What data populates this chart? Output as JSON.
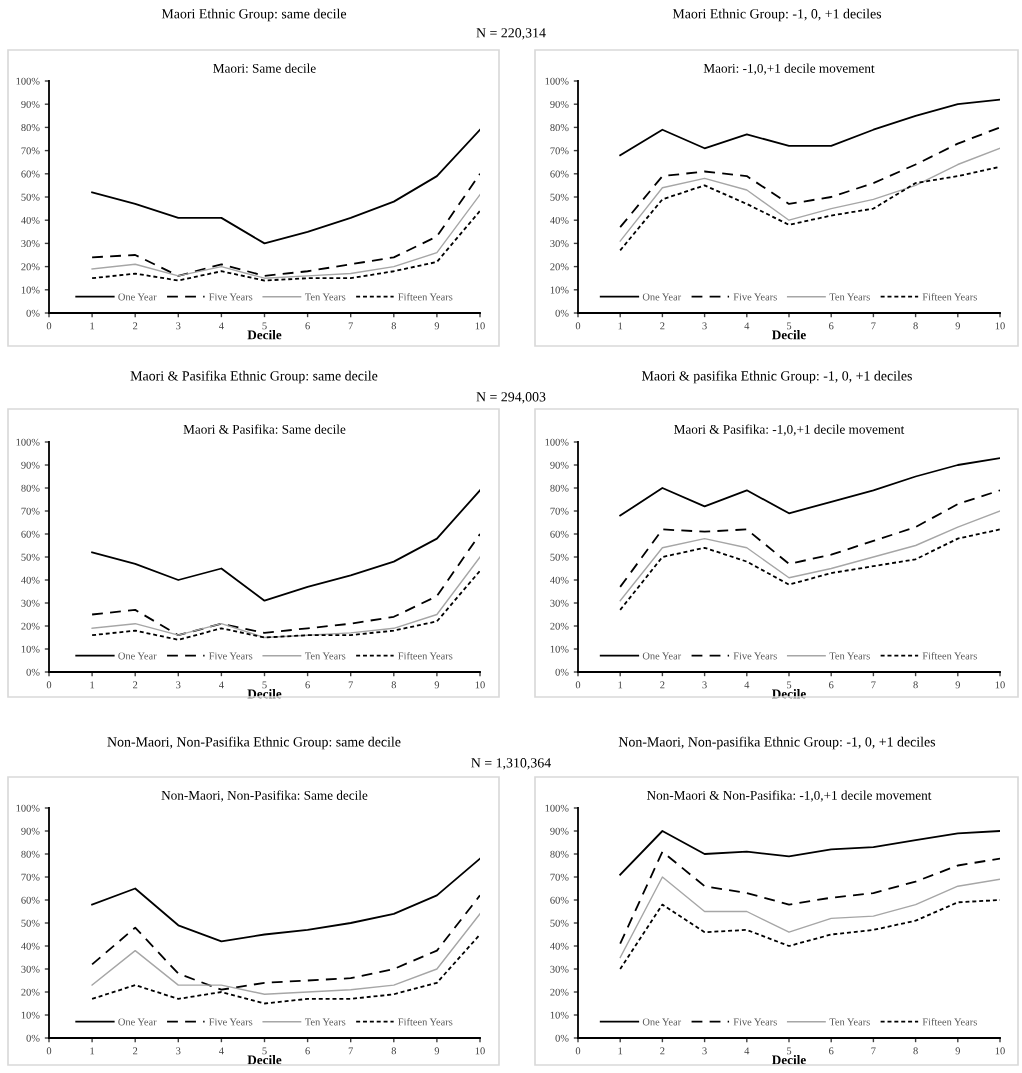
{
  "chart_data": [
    {
      "type": "line",
      "title": "Maori: Same decile",
      "xlabel": "Decile",
      "annotations": [
        "Maori Ethnic Group: same decile",
        "N = 220,314"
      ],
      "x": [
        1,
        2,
        3,
        4,
        5,
        6,
        7,
        8,
        9,
        10
      ],
      "xlim": [
        0,
        10
      ],
      "xticks": [
        0,
        1,
        2,
        3,
        4,
        5,
        6,
        7,
        8,
        9,
        10
      ],
      "ylim": [
        0,
        100
      ],
      "yticks": [
        {
          "value": 0,
          "label": "0%"
        },
        {
          "value": 10,
          "label": "10%"
        },
        {
          "value": 20,
          "label": "20%"
        },
        {
          "value": 30,
          "label": "30%"
        },
        {
          "value": 40,
          "label": "40%"
        },
        {
          "value": 50,
          "label": "50%"
        },
        {
          "value": 60,
          "label": "60%"
        },
        {
          "value": 70,
          "label": "70%"
        },
        {
          "value": 80,
          "label": "80%"
        },
        {
          "value": 90,
          "label": "90%"
        },
        {
          "value": 100,
          "label": "100%"
        }
      ],
      "legend": "bottom",
      "grid": false,
      "series": [
        {
          "name": "One Year",
          "color": "#000000",
          "line_style": "solid",
          "values": [
            52,
            47,
            41,
            41,
            30,
            35,
            41,
            48,
            59,
            79
          ]
        },
        {
          "name": "Five Years",
          "color": "#000000",
          "line_style": "dashed",
          "values": [
            24,
            25,
            16,
            21,
            16,
            18,
            21,
            24,
            33,
            60
          ]
        },
        {
          "name": "Ten Years",
          "color": "#a6a6a6",
          "line_style": "solid",
          "values": [
            19,
            21,
            16,
            20,
            15,
            16,
            17,
            20,
            26,
            51
          ]
        },
        {
          "name": "Fifteen Years",
          "color": "#000000",
          "line_style": "dotted",
          "values": [
            15,
            17,
            14,
            18,
            14,
            15,
            15,
            18,
            22,
            44
          ]
        }
      ]
    },
    {
      "type": "line",
      "title": "Maori: -1,0,+1 decile movement",
      "xlabel": "Decile",
      "annotations": [
        "Maori Ethnic Group: -1, 0, +1 deciles"
      ],
      "x": [
        1,
        2,
        3,
        4,
        5,
        6,
        7,
        8,
        9,
        10
      ],
      "xlim": [
        0,
        10
      ],
      "xticks": [
        0,
        1,
        2,
        3,
        4,
        5,
        6,
        7,
        8,
        9,
        10
      ],
      "ylim": [
        0,
        100
      ],
      "yticks": [
        {
          "value": 0,
          "label": "0%"
        },
        {
          "value": 10,
          "label": "10%"
        },
        {
          "value": 20,
          "label": "20%"
        },
        {
          "value": 30,
          "label": "30%"
        },
        {
          "value": 40,
          "label": "40%"
        },
        {
          "value": 50,
          "label": "50%"
        },
        {
          "value": 60,
          "label": "60%"
        },
        {
          "value": 70,
          "label": "70%"
        },
        {
          "value": 80,
          "label": "80%"
        },
        {
          "value": 90,
          "label": "90%"
        },
        {
          "value": 100,
          "label": "100%"
        }
      ],
      "legend": "bottom",
      "grid": false,
      "series": [
        {
          "name": "One Year",
          "color": "#000000",
          "line_style": "solid",
          "values": [
            68,
            79,
            71,
            77,
            72,
            72,
            79,
            85,
            90,
            92
          ]
        },
        {
          "name": "Five Years",
          "color": "#000000",
          "line_style": "dashed",
          "values": [
            37,
            59,
            61,
            59,
            47,
            50,
            56,
            64,
            73,
            80
          ]
        },
        {
          "name": "Ten Years",
          "color": "#a6a6a6",
          "line_style": "solid",
          "values": [
            31,
            54,
            58,
            53,
            40,
            45,
            49,
            55,
            64,
            71
          ]
        },
        {
          "name": "Fifteen Years",
          "color": "#000000",
          "line_style": "dotted",
          "values": [
            27,
            49,
            55,
            47,
            38,
            42,
            45,
            56,
            59,
            63
          ]
        }
      ]
    },
    {
      "type": "line",
      "title": "Maori & Pasifika: Same decile",
      "xlabel": "Decile",
      "annotations": [
        "Maori & Pasifika Ethnic Group: same decile",
        "N = 294,003"
      ],
      "x": [
        1,
        2,
        3,
        4,
        5,
        6,
        7,
        8,
        9,
        10
      ],
      "xlim": [
        0,
        10
      ],
      "xticks": [
        0,
        1,
        2,
        3,
        4,
        5,
        6,
        7,
        8,
        9,
        10
      ],
      "ylim": [
        0,
        100
      ],
      "yticks": [
        {
          "value": 0,
          "label": "0%"
        },
        {
          "value": 10,
          "label": "10%"
        },
        {
          "value": 20,
          "label": "20%"
        },
        {
          "value": 30,
          "label": "30%"
        },
        {
          "value": 40,
          "label": "40%"
        },
        {
          "value": 50,
          "label": "50%"
        },
        {
          "value": 60,
          "label": "60%"
        },
        {
          "value": 70,
          "label": "70%"
        },
        {
          "value": 80,
          "label": "80%"
        },
        {
          "value": 90,
          "label": "90%"
        },
        {
          "value": 100,
          "label": "100%"
        }
      ],
      "legend": "bottom",
      "grid": false,
      "series": [
        {
          "name": "One Year",
          "color": "#000000",
          "line_style": "solid",
          "values": [
            52,
            47,
            40,
            45,
            31,
            37,
            42,
            48,
            58,
            79
          ]
        },
        {
          "name": "Five Years",
          "color": "#000000",
          "line_style": "dashed",
          "values": [
            25,
            27,
            16,
            21,
            17,
            19,
            21,
            24,
            33,
            60
          ]
        },
        {
          "name": "Ten Years",
          "color": "#a6a6a6",
          "line_style": "solid",
          "values": [
            19,
            21,
            16,
            21,
            15,
            16,
            17,
            19,
            25,
            50
          ]
        },
        {
          "name": "Fifteen Years",
          "color": "#000000",
          "line_style": "dotted",
          "values": [
            16,
            18,
            14,
            19,
            15,
            16,
            16,
            18,
            22,
            44
          ]
        }
      ]
    },
    {
      "type": "line",
      "title": "Maori & Pasifika: -1,0,+1 decile movement",
      "xlabel": "Decile",
      "annotations": [
        "Maori & pasifika Ethnic Group: -1, 0, +1 deciles"
      ],
      "x": [
        1,
        2,
        3,
        4,
        5,
        6,
        7,
        8,
        9,
        10
      ],
      "xlim": [
        0,
        10
      ],
      "xticks": [
        0,
        1,
        2,
        3,
        4,
        5,
        6,
        7,
        8,
        9,
        10
      ],
      "ylim": [
        0,
        100
      ],
      "yticks": [
        {
          "value": 0,
          "label": "0%"
        },
        {
          "value": 10,
          "label": "10%"
        },
        {
          "value": 20,
          "label": "20%"
        },
        {
          "value": 30,
          "label": "30%"
        },
        {
          "value": 40,
          "label": "40%"
        },
        {
          "value": 50,
          "label": "50%"
        },
        {
          "value": 60,
          "label": "60%"
        },
        {
          "value": 70,
          "label": "70%"
        },
        {
          "value": 80,
          "label": "80%"
        },
        {
          "value": 90,
          "label": "90%"
        },
        {
          "value": 100,
          "label": "100%"
        }
      ],
      "legend": "bottom",
      "grid": false,
      "series": [
        {
          "name": "One Year",
          "color": "#000000",
          "line_style": "solid",
          "values": [
            68,
            80,
            72,
            79,
            69,
            74,
            79,
            85,
            90,
            93
          ]
        },
        {
          "name": "Five Years",
          "color": "#000000",
          "line_style": "dashed",
          "values": [
            37,
            62,
            61,
            62,
            47,
            51,
            57,
            63,
            73,
            79
          ]
        },
        {
          "name": "Ten Years",
          "color": "#a6a6a6",
          "line_style": "solid",
          "values": [
            31,
            54,
            58,
            54,
            41,
            45,
            50,
            55,
            63,
            70
          ]
        },
        {
          "name": "Fifteen Years",
          "color": "#000000",
          "line_style": "dotted",
          "values": [
            27,
            50,
            54,
            48,
            38,
            43,
            46,
            49,
            58,
            62
          ]
        }
      ]
    },
    {
      "type": "line",
      "title": "Non-Maori, Non-Pasifika: Same decile",
      "xlabel": "Decile",
      "annotations": [
        "Non-Maori, Non-Pasifika Ethnic Group: same decile",
        "N = 1,310,364"
      ],
      "x": [
        1,
        2,
        3,
        4,
        5,
        6,
        7,
        8,
        9,
        10
      ],
      "xlim": [
        0,
        10
      ],
      "xticks": [
        0,
        1,
        2,
        3,
        4,
        5,
        6,
        7,
        8,
        9,
        10
      ],
      "ylim": [
        0,
        100
      ],
      "yticks": [
        {
          "value": 0,
          "label": "0%"
        },
        {
          "value": 10,
          "label": "10%"
        },
        {
          "value": 20,
          "label": "20%"
        },
        {
          "value": 30,
          "label": "30%"
        },
        {
          "value": 40,
          "label": "40%"
        },
        {
          "value": 50,
          "label": "50%"
        },
        {
          "value": 60,
          "label": "60%"
        },
        {
          "value": 70,
          "label": "70%"
        },
        {
          "value": 80,
          "label": "80%"
        },
        {
          "value": 90,
          "label": "90%"
        },
        {
          "value": 100,
          "label": "100%"
        }
      ],
      "legend": "bottom",
      "grid": false,
      "series": [
        {
          "name": "One Year",
          "color": "#000000",
          "line_style": "solid",
          "values": [
            58,
            65,
            49,
            42,
            45,
            47,
            50,
            54,
            62,
            78
          ]
        },
        {
          "name": "Five Years",
          "color": "#000000",
          "line_style": "dashed",
          "values": [
            32,
            48,
            28,
            21,
            24,
            25,
            26,
            30,
            38,
            62
          ]
        },
        {
          "name": "Ten Years",
          "color": "#a6a6a6",
          "line_style": "solid",
          "values": [
            23,
            38,
            23,
            23,
            19,
            20,
            21,
            23,
            30,
            54
          ]
        },
        {
          "name": "Fifteen Years",
          "color": "#000000",
          "line_style": "dotted",
          "values": [
            17,
            23,
            17,
            20,
            15,
            17,
            17,
            19,
            24,
            45
          ]
        }
      ]
    },
    {
      "type": "line",
      "title": "Non-Maori & Non-Pasifika: -1,0,+1 decile movement",
      "xlabel": "Decile",
      "annotations": [
        "Non-Maori, Non-pasifika Ethnic Group: -1, 0, +1 deciles"
      ],
      "x": [
        1,
        2,
        3,
        4,
        5,
        6,
        7,
        8,
        9,
        10
      ],
      "xlim": [
        0,
        10
      ],
      "xticks": [
        0,
        1,
        2,
        3,
        4,
        5,
        6,
        7,
        8,
        9,
        10
      ],
      "ylim": [
        0,
        100
      ],
      "yticks": [
        {
          "value": 0,
          "label": "0%"
        },
        {
          "value": 10,
          "label": "10%"
        },
        {
          "value": 20,
          "label": "20%"
        },
        {
          "value": 30,
          "label": "30%"
        },
        {
          "value": 40,
          "label": "40%"
        },
        {
          "value": 50,
          "label": "50%"
        },
        {
          "value": 60,
          "label": "60%"
        },
        {
          "value": 70,
          "label": "70%"
        },
        {
          "value": 80,
          "label": "80%"
        },
        {
          "value": 90,
          "label": "90%"
        },
        {
          "value": 100,
          "label": "100%"
        }
      ],
      "legend": "bottom",
      "grid": false,
      "series": [
        {
          "name": "One Year",
          "color": "#000000",
          "line_style": "solid",
          "values": [
            71,
            90,
            80,
            81,
            79,
            82,
            83,
            86,
            89,
            90
          ]
        },
        {
          "name": "Five Years",
          "color": "#000000",
          "line_style": "dashed",
          "values": [
            41,
            81,
            66,
            63,
            58,
            61,
            63,
            68,
            75,
            78
          ]
        },
        {
          "name": "Ten Years",
          "color": "#a6a6a6",
          "line_style": "solid",
          "values": [
            35,
            70,
            55,
            55,
            46,
            52,
            53,
            58,
            66,
            69
          ]
        },
        {
          "name": "Fifteen Years",
          "color": "#000000",
          "line_style": "dotted",
          "values": [
            30,
            58,
            46,
            47,
            40,
            45,
            47,
            51,
            59,
            60
          ]
        }
      ]
    }
  ]
}
